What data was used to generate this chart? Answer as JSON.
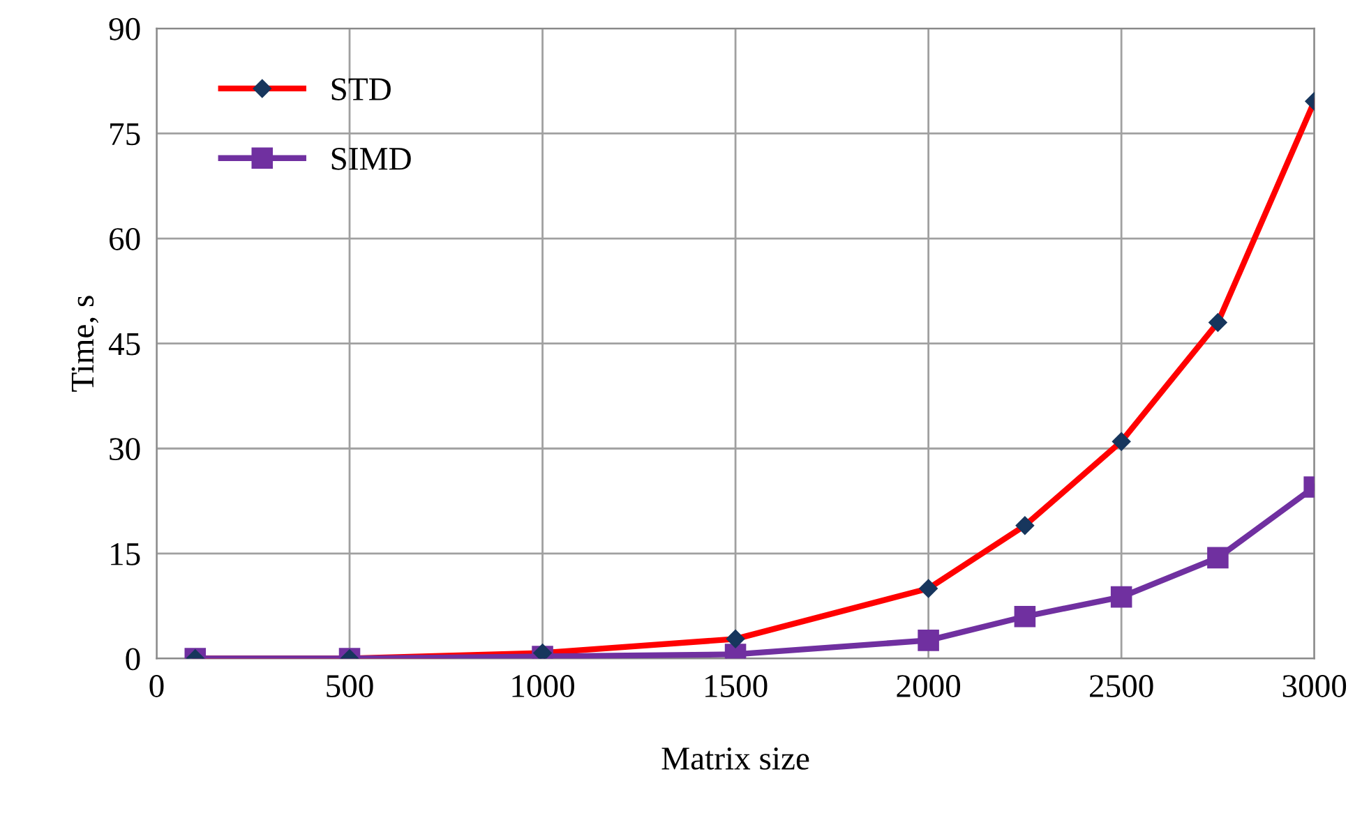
{
  "chart_data": {
    "type": "line",
    "xlabel": "Matrix size",
    "ylabel": "Time, s",
    "x": [
      100,
      500,
      1000,
      1500,
      2000,
      2250,
      2500,
      2750,
      3000
    ],
    "series": [
      {
        "name": "STD",
        "color": "#ff0000",
        "marker": "diamond",
        "values": [
          0,
          0,
          0.8,
          2.8,
          10,
          19,
          31,
          48,
          79.6
        ]
      },
      {
        "name": "SIMD",
        "color": "#7030a0",
        "marker": "square",
        "values": [
          0,
          0,
          0.3,
          0.6,
          2.6,
          6,
          8.8,
          14.4,
          24.5
        ]
      }
    ],
    "xlim": [
      0,
      3000
    ],
    "xticks": [
      0,
      500,
      1000,
      1500,
      2000,
      2500,
      3000
    ],
    "ylim": [
      0,
      90
    ],
    "yticks": [
      0,
      15,
      30,
      45,
      60,
      75,
      90
    ],
    "grid": true,
    "legend": "top left",
    "line_style": "solid"
  }
}
